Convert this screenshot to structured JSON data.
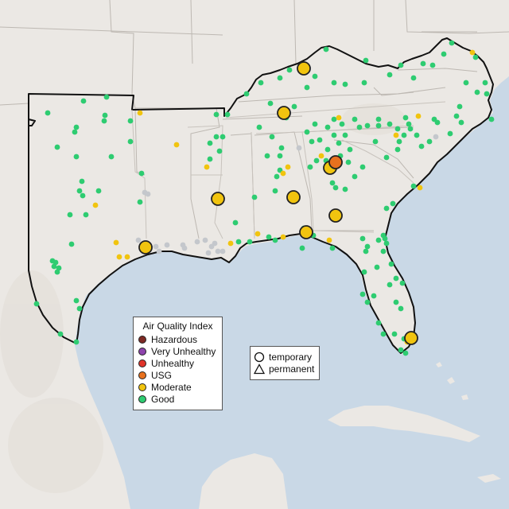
{
  "colors": {
    "ocean": "#c9d8e6",
    "land": "#ebe8e4",
    "terrain": "#e2ddd7",
    "border": "#b8b3ae",
    "hazardous": "#7e2a24",
    "very_unhealthy": "#8e44ad",
    "unhealthy": "#e0342a",
    "usg": "#e8711e",
    "moderate": "#f1c40f",
    "good": "#2ecc71",
    "no_data": "#c4c7cc"
  },
  "legend": {
    "title": "Air Quality Index",
    "categories": [
      {
        "label": "Hazardous",
        "color_key": "hazardous"
      },
      {
        "label": "Very Unhealthy",
        "color_key": "very_unhealthy"
      },
      {
        "label": "Unhealthy",
        "color_key": "unhealthy"
      },
      {
        "label": "USG",
        "color_key": "usg"
      },
      {
        "label": "Moderate",
        "color_key": "moderate"
      },
      {
        "label": "Good",
        "color_key": "good"
      }
    ]
  },
  "monitor_types": [
    {
      "label": "temporary",
      "icon": "circle-icon"
    },
    {
      "label": "permanent",
      "icon": "triangle-icon"
    }
  ]
}
